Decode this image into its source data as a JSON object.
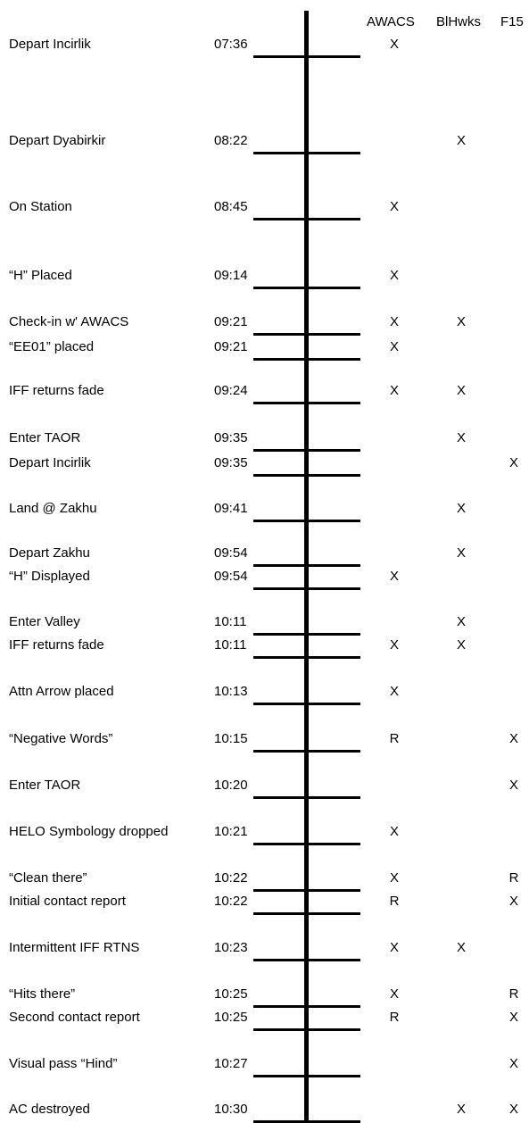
{
  "headers": {
    "awacs": "AWACS",
    "blhwks": "BlHwks",
    "f15": "F15"
  },
  "events": [
    {
      "label": "Depart Incirlik",
      "time": "07:36",
      "awacs": "X",
      "blhwks": "",
      "f15": ""
    },
    {
      "label": "Depart Dyabirkir",
      "time": "08:22",
      "awacs": "",
      "blhwks": "X",
      "f15": ""
    },
    {
      "label": "On Station",
      "time": "08:45",
      "awacs": "X",
      "blhwks": "",
      "f15": ""
    },
    {
      "label": "“H” Placed",
      "time": "09:14",
      "awacs": "X",
      "blhwks": "",
      "f15": ""
    },
    {
      "label": "Check-in w' AWACS",
      "time": "09:21",
      "awacs": "X",
      "blhwks": "X",
      "f15": ""
    },
    {
      "label": "“EE01” placed",
      "time": "09:21",
      "awacs": "X",
      "blhwks": "",
      "f15": ""
    },
    {
      "label": "IFF returns fade",
      "time": "09:24",
      "awacs": "X",
      "blhwks": "X",
      "f15": ""
    },
    {
      "label": "Enter TAOR",
      "time": "09:35",
      "awacs": "",
      "blhwks": "X",
      "f15": ""
    },
    {
      "label": "Depart Incirlik",
      "time": "09:35",
      "awacs": "",
      "blhwks": "",
      "f15": "X"
    },
    {
      "label": "Land @ Zakhu",
      "time": "09:41",
      "awacs": "",
      "blhwks": "X",
      "f15": ""
    },
    {
      "label": "Depart Zakhu",
      "time": "09:54",
      "awacs": "",
      "blhwks": "X",
      "f15": ""
    },
    {
      "label": "“H” Displayed",
      "time": "09:54",
      "awacs": "X",
      "blhwks": "",
      "f15": ""
    },
    {
      "label": "Enter Valley",
      "time": "10:11",
      "awacs": "",
      "blhwks": "X",
      "f15": ""
    },
    {
      "label": "IFF returns fade",
      "time": "10:11",
      "awacs": "X",
      "blhwks": "X",
      "f15": ""
    },
    {
      "label": "Attn Arrow placed",
      "time": "10:13",
      "awacs": "X",
      "blhwks": "",
      "f15": ""
    },
    {
      "label": "“Negative Words”",
      "time": "10:15",
      "awacs": "R",
      "blhwks": "",
      "f15": "X"
    },
    {
      "label": "Enter TAOR",
      "time": "10:20",
      "awacs": "",
      "blhwks": "",
      "f15": "X"
    },
    {
      "label": "HELO Symbology dropped",
      "time": "10:21",
      "awacs": "X",
      "blhwks": "",
      "f15": ""
    },
    {
      "label": "“Clean there”",
      "time": "10:22",
      "awacs": "X",
      "blhwks": "",
      "f15": "R"
    },
    {
      "label": "Initial contact report",
      "time": "10:22",
      "awacs": "R",
      "blhwks": "",
      "f15": "X"
    },
    {
      "label": "Intermittent IFF RTNS",
      "time": "10:23",
      "awacs": "X",
      "blhwks": "X",
      "f15": ""
    },
    {
      "label": "“Hits there”",
      "time": "10:25",
      "awacs": "X",
      "blhwks": "",
      "f15": "R"
    },
    {
      "label": "Second contact report",
      "time": "10:25",
      "awacs": "R",
      "blhwks": "",
      "f15": "X"
    },
    {
      "label": "Visual pass “Hind”",
      "time": "10:27",
      "awacs": "",
      "blhwks": "",
      "f15": "X"
    },
    {
      "label": "AC destroyed",
      "time": "10:30",
      "awacs": "",
      "blhwks": "X",
      "f15": "X"
    }
  ]
}
